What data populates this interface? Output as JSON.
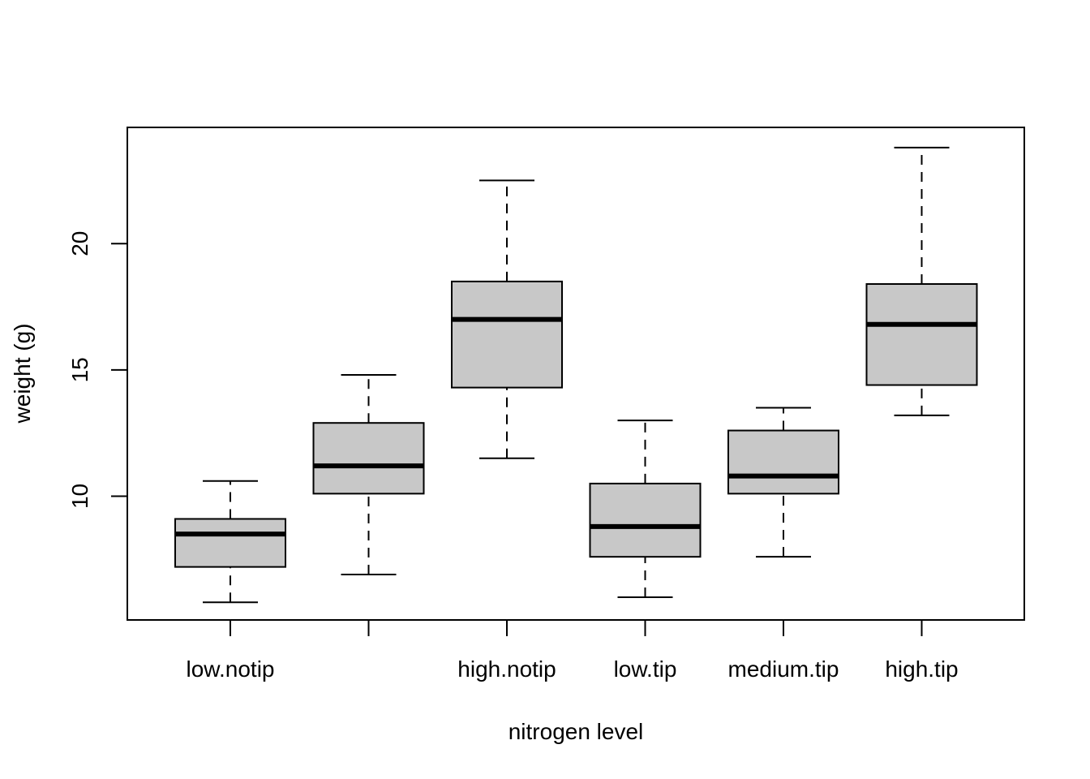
{
  "chart_data": {
    "type": "box",
    "title": "",
    "xlabel": "nitrogen level",
    "ylabel": "weight (g)",
    "ylim": [
      5.1,
      24.6
    ],
    "yticks": [
      10,
      15,
      20
    ],
    "grid": false,
    "box_color": "#c8c8c8",
    "categories": [
      {
        "tick_label": "low.notip",
        "whisker_low": 5.8,
        "q1": 7.2,
        "median": 8.5,
        "q3": 9.1,
        "whisker_high": 10.6
      },
      {
        "tick_label": "",
        "whisker_low": 6.9,
        "q1": 10.1,
        "median": 11.2,
        "q3": 12.9,
        "whisker_high": 14.8
      },
      {
        "tick_label": "high.notip",
        "whisker_low": 11.5,
        "q1": 14.3,
        "median": 17.0,
        "q3": 18.5,
        "whisker_high": 22.5
      },
      {
        "tick_label": "low.tip",
        "whisker_low": 6.0,
        "q1": 7.6,
        "median": 8.8,
        "q3": 10.5,
        "whisker_high": 13.0
      },
      {
        "tick_label": "medium.tip",
        "whisker_low": 7.6,
        "q1": 10.1,
        "median": 10.8,
        "q3": 12.6,
        "whisker_high": 13.5
      },
      {
        "tick_label": "high.tip",
        "whisker_low": 13.2,
        "q1": 14.4,
        "median": 16.8,
        "q3": 18.4,
        "whisker_high": 23.8
      }
    ]
  }
}
